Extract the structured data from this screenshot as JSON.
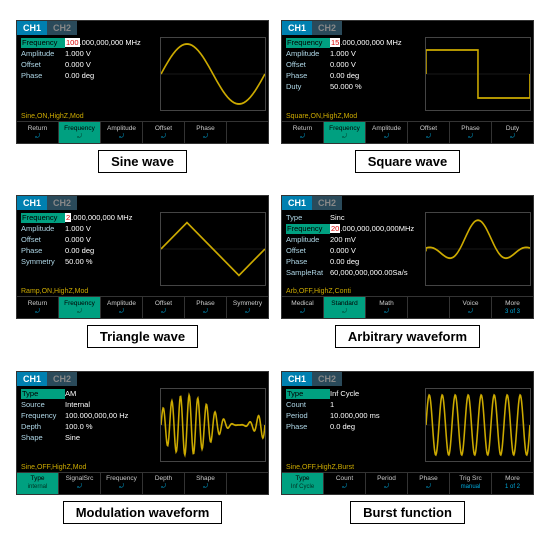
{
  "panels": [
    {
      "caption": "Sine wave",
      "tabs": {
        "active": "CH1",
        "inactive": "CH2"
      },
      "params": [
        {
          "k": "Frequency",
          "v": [
            "100",
            ".000,000,000 MHz"
          ],
          "sel": true,
          "hl": 0
        },
        {
          "k": "Amplitude",
          "v": [
            "1.000 V"
          ]
        },
        {
          "k": "Offset",
          "v": [
            "0.000 V"
          ]
        },
        {
          "k": "Phase",
          "v": [
            "0.00 deg"
          ]
        }
      ],
      "status": "Sine,ON,HighZ,Mod",
      "softkeys": [
        {
          "t": "Return"
        },
        {
          "t": "Frequency",
          "hl": true
        },
        {
          "t": "Amplitude"
        },
        {
          "t": "Offset"
        },
        {
          "t": "Phase"
        },
        {
          "t": ""
        }
      ],
      "wave": "sine",
      "wave_color": "#ccaa00"
    },
    {
      "caption": "Square wave",
      "tabs": {
        "active": "CH1",
        "inactive": "CH2"
      },
      "params": [
        {
          "k": "Frequency",
          "v": [
            "15",
            ".000,000,000 MHz"
          ],
          "sel": true,
          "hl": 0
        },
        {
          "k": "Amplitude",
          "v": [
            "1.000 V"
          ]
        },
        {
          "k": "Offset",
          "v": [
            "0.000 V"
          ]
        },
        {
          "k": "Phase",
          "v": [
            "0.00 deg"
          ]
        },
        {
          "k": "Duty",
          "v": [
            "50.000 %"
          ]
        }
      ],
      "status": "Square,ON,HighZ,Mod",
      "softkeys": [
        {
          "t": "Return"
        },
        {
          "t": "Frequency",
          "hl": true
        },
        {
          "t": "Amplitude"
        },
        {
          "t": "Offset"
        },
        {
          "t": "Phase"
        },
        {
          "t": "Duty"
        }
      ],
      "wave": "square",
      "wave_color": "#ccaa00"
    },
    {
      "caption": "Triangle wave",
      "tabs": {
        "active": "CH1",
        "inactive": "CH2"
      },
      "params": [
        {
          "k": "Frequency",
          "v": [
            "2",
            ".000,000,000 MHz"
          ],
          "sel": true,
          "hl": 0
        },
        {
          "k": "Amplitude",
          "v": [
            "1.000 V"
          ]
        },
        {
          "k": "Offset",
          "v": [
            "0.000 V"
          ]
        },
        {
          "k": "Phase",
          "v": [
            "0.00 deg"
          ]
        },
        {
          "k": "Symmetry",
          "v": [
            "50.00 %"
          ]
        }
      ],
      "status": "Ramp,ON,HighZ,Mod",
      "softkeys": [
        {
          "t": "Return"
        },
        {
          "t": "Frequency",
          "hl": true
        },
        {
          "t": "Amplitude"
        },
        {
          "t": "Offset"
        },
        {
          "t": "Phase"
        },
        {
          "t": "Symmetry"
        }
      ],
      "wave": "triangle",
      "wave_color": "#ccaa00"
    },
    {
      "caption": "Arbitrary waveform",
      "tabs": {
        "active": "CH1",
        "inactive": "CH2"
      },
      "params": [
        {
          "k": "Type",
          "v": [
            "Sinc"
          ]
        },
        {
          "k": "Frequency",
          "v": [
            "20",
            ".000,000,000,000",
            "MHz"
          ],
          "sel": true,
          "hl": 0
        },
        {
          "k": "Amplitude",
          "v": [
            "200 mV"
          ]
        },
        {
          "k": "Offset",
          "v": [
            "0.000 V"
          ]
        },
        {
          "k": "Phase",
          "v": [
            "0.00 deg"
          ]
        },
        {
          "k": "SampleRat",
          "v": [
            "60,000,000,000.00Sa/s"
          ]
        }
      ],
      "status": "Arb,OFF,HighZ,Conti",
      "softkeys": [
        {
          "t": "Medical"
        },
        {
          "t": "Standard",
          "hl": true
        },
        {
          "t": "Math"
        },
        {
          "t": ""
        },
        {
          "t": "Voice"
        },
        {
          "t": "More",
          "sub": "3 of 3"
        }
      ],
      "wave": "sinc",
      "wave_color": "#ccaa00"
    },
    {
      "caption": "Modulation waveform",
      "tabs": {
        "active": "CH1",
        "inactive": "CH2"
      },
      "params": [
        {
          "k": "Type",
          "v": [
            "AM"
          ],
          "sel": true
        },
        {
          "k": "Source",
          "v": [
            "Internal"
          ]
        },
        {
          "k": "Frequency",
          "v": [
            "100.000,000,00 Hz"
          ]
        },
        {
          "k": "Depth",
          "v": [
            "100.0 %"
          ]
        },
        {
          "k": "Shape",
          "v": [
            "Sine"
          ]
        }
      ],
      "status": "Sine,OFF,HighZ,Mod",
      "softkeys": [
        {
          "t": "Type",
          "sub": "internal",
          "hl": true
        },
        {
          "t": "SignalSrc"
        },
        {
          "t": "Frequency"
        },
        {
          "t": "Depth"
        },
        {
          "t": "Shape"
        },
        {
          "t": ""
        }
      ],
      "wave": "am",
      "wave_color": "#ccaa00"
    },
    {
      "caption": "Burst function",
      "tabs": {
        "active": "CH1",
        "inactive": "CH2"
      },
      "params": [
        {
          "k": "Type",
          "v": [
            "Inf Cycle"
          ],
          "sel": true
        },
        {
          "k": "Count",
          "v": [
            "1"
          ]
        },
        {
          "k": "Period",
          "v": [
            "10.000,000 ms"
          ]
        },
        {
          "k": "Phase",
          "v": [
            "0.0 deg"
          ]
        }
      ],
      "status": "Sine,OFF,HighZ,Burst",
      "softkeys": [
        {
          "t": "Type",
          "sub": "Inf Cycle",
          "hl": true
        },
        {
          "t": "Count"
        },
        {
          "t": "Period"
        },
        {
          "t": "Phase"
        },
        {
          "t": "Trig Src",
          "sub": "manual"
        },
        {
          "t": "More",
          "sub": "1 of 2"
        }
      ],
      "wave": "burst",
      "wave_color": "#ccaa00"
    }
  ]
}
